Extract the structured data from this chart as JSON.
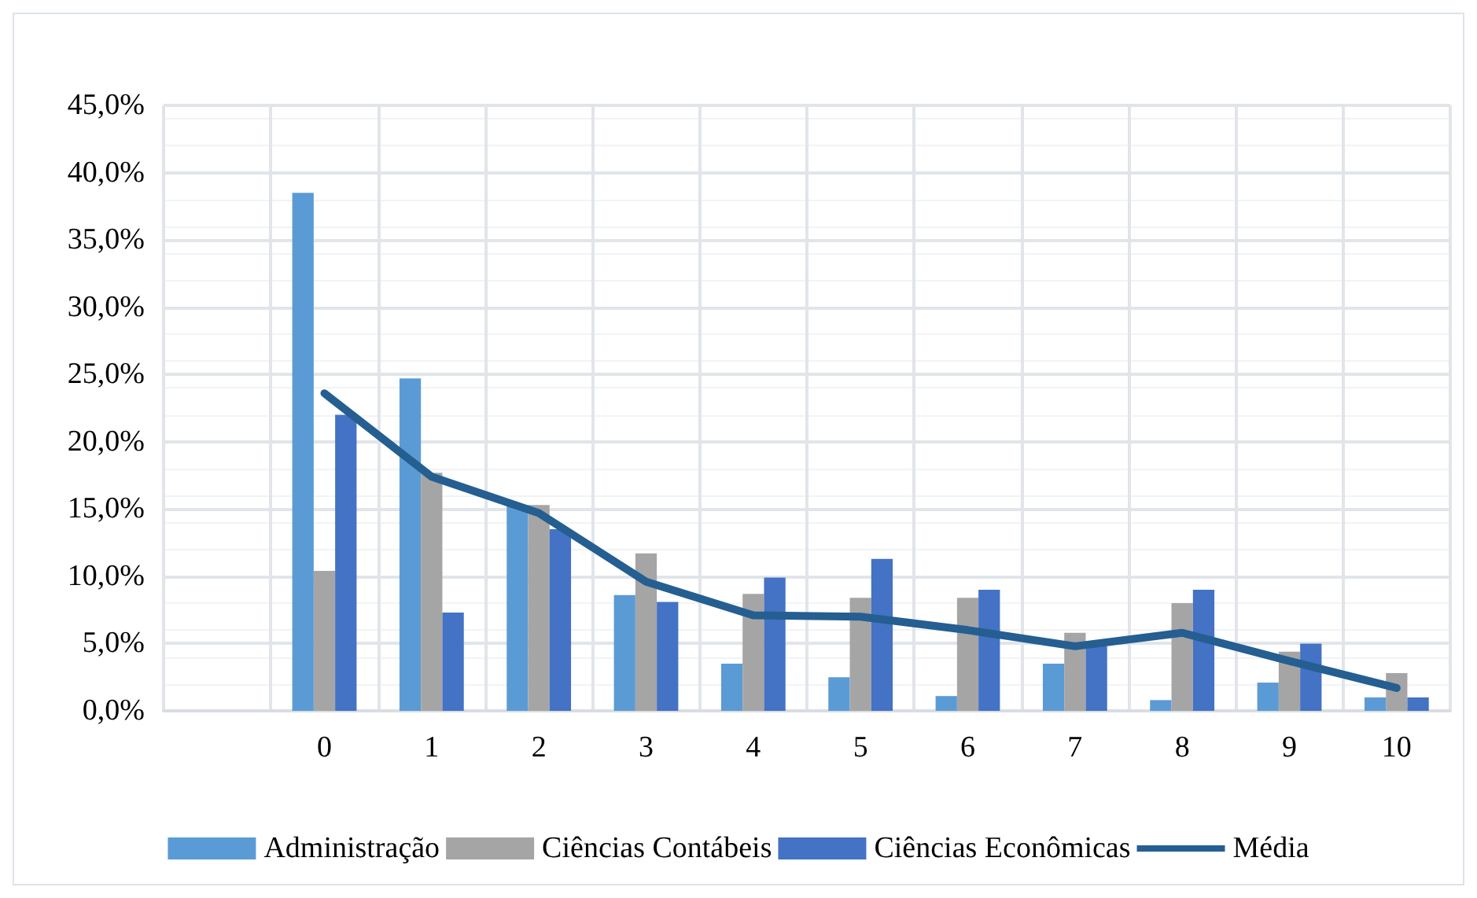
{
  "chart_data": {
    "type": "bar",
    "categories": [
      null,
      "0",
      "1",
      "2",
      "3",
      "4",
      "5",
      "6",
      "7",
      "8",
      "9",
      "10"
    ],
    "series": [
      {
        "name": "Administração",
        "color": "#5b9bd5",
        "values": [
          null,
          38.5,
          24.7,
          15.3,
          8.6,
          3.5,
          2.5,
          1.1,
          3.5,
          0.8,
          2.1,
          1.0
        ]
      },
      {
        "name": "Ciências Contábeis",
        "color": "#a5a5a5",
        "values": [
          null,
          10.4,
          17.7,
          15.3,
          11.7,
          8.7,
          8.4,
          8.4,
          5.8,
          8.0,
          4.4,
          2.8
        ]
      },
      {
        "name": "Ciências Econômicas",
        "color": "#4472c4",
        "values": [
          null,
          22.0,
          7.3,
          13.5,
          8.1,
          9.9,
          11.3,
          9.0,
          4.8,
          9.0,
          5.0,
          1.0
        ]
      },
      {
        "name": "Média",
        "color": "#255e91",
        "type": "line",
        "values": [
          null,
          23.6,
          17.4,
          14.7,
          9.6,
          7.1,
          7.0,
          6.0,
          4.8,
          5.8,
          3.7,
          1.7
        ]
      }
    ],
    "ylim": [
      0,
      45
    ],
    "yticks": [
      {
        "value": 0,
        "label": "0,0%"
      },
      {
        "value": 5,
        "label": "5,0%"
      },
      {
        "value": 10,
        "label": "10,0%"
      },
      {
        "value": 15,
        "label": "15,0%"
      },
      {
        "value": 20,
        "label": "20,0%"
      },
      {
        "value": 25,
        "label": "25,0%"
      },
      {
        "value": 30,
        "label": "30,0%"
      },
      {
        "value": 35,
        "label": "35,0%"
      },
      {
        "value": 40,
        "label": "40,0%"
      },
      {
        "value": 45,
        "label": "45,0%"
      }
    ],
    "grid": true,
    "legend": "bottom",
    "marker": "none",
    "line_style": "solid"
  }
}
